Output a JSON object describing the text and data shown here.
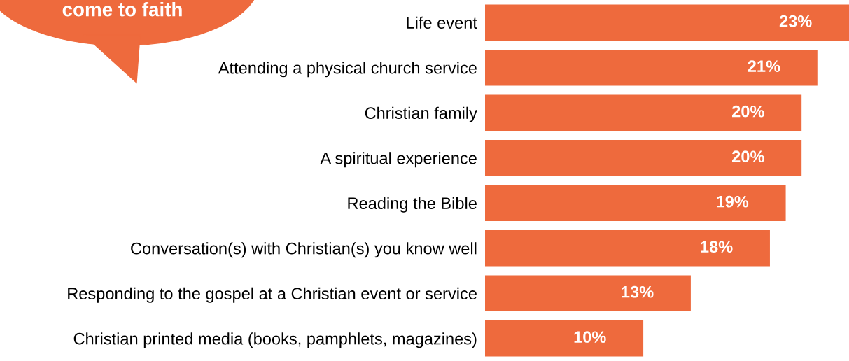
{
  "chart_data": {
    "type": "bar",
    "orientation": "horizontal",
    "title": "come to faith",
    "categories": [
      "Life event",
      "Attending a physical church service",
      "Christian family",
      "A spiritual experience",
      "Reading the Bible",
      "Conversation(s) with Christian(s) you know well",
      "Responding to the gospel at a Christian event or service",
      "Christian printed media (books, pamphlets, magazines)"
    ],
    "values": [
      23,
      21,
      20,
      20,
      19,
      18,
      13,
      10
    ],
    "value_labels": [
      "23%",
      "21%",
      "20%",
      "20%",
      "19%",
      "18%",
      "13%",
      "10%"
    ],
    "color": "#ee6a3d"
  }
}
